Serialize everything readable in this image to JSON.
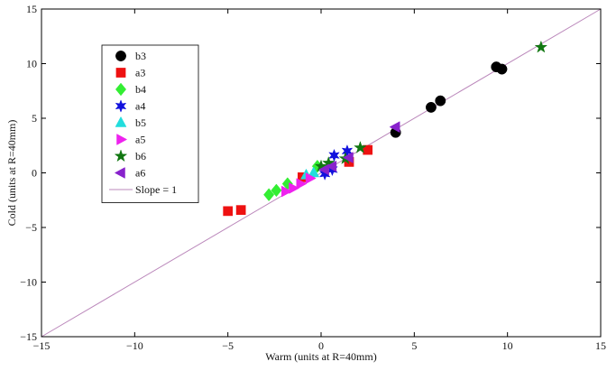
{
  "chart_data": {
    "type": "scatter",
    "title": "",
    "xlabel": "Warm (units at R=40mm)",
    "ylabel": "Cold (units at R=40mm)",
    "xlim": [
      -15,
      15
    ],
    "ylim": [
      -15,
      15
    ],
    "xticks": [
      -15,
      -10,
      -5,
      0,
      5,
      10,
      15
    ],
    "yticks": [
      -15,
      -10,
      -5,
      0,
      5,
      10,
      15
    ],
    "xtick_labels": [
      "−15",
      "−10",
      "−5",
      "0",
      "5",
      "10",
      "15"
    ],
    "ytick_labels": [
      "−15",
      "−10",
      "−5",
      "0",
      "5",
      "10",
      "15"
    ],
    "grid": false,
    "legend_position": "upper-left",
    "series": [
      {
        "name": "b3",
        "color": "#000000",
        "marker": "circle",
        "points": [
          [
            4.0,
            3.7
          ],
          [
            5.9,
            6.0
          ],
          [
            6.4,
            6.6
          ],
          [
            9.4,
            9.7
          ],
          [
            9.7,
            9.5
          ]
        ]
      },
      {
        "name": "a3",
        "color": "#ee1111",
        "marker": "square",
        "points": [
          [
            -5.0,
            -3.5
          ],
          [
            -4.3,
            -3.4
          ],
          [
            -1.0,
            -0.4
          ],
          [
            1.5,
            1.0
          ],
          [
            2.5,
            2.1
          ]
        ]
      },
      {
        "name": "b4",
        "color": "#33ee33",
        "marker": "diamond",
        "points": [
          [
            -2.8,
            -2.0
          ],
          [
            -2.4,
            -1.6
          ],
          [
            -1.8,
            -1.0
          ],
          [
            -0.2,
            0.6
          ]
        ]
      },
      {
        "name": "a4",
        "color": "#1111dd",
        "marker": "hexagram",
        "points": [
          [
            0.2,
            -0.1
          ],
          [
            0.6,
            0.3
          ],
          [
            0.7,
            1.6
          ],
          [
            1.4,
            2.0
          ]
        ]
      },
      {
        "name": "b5",
        "color": "#22dddd",
        "marker": "triangle-up",
        "points": [
          [
            -0.8,
            -0.2
          ],
          [
            -0.4,
            0.0
          ]
        ]
      },
      {
        "name": "a5",
        "color": "#ee22ee",
        "marker": "triangle-right",
        "points": [
          [
            -1.9,
            -1.7
          ],
          [
            -1.5,
            -1.4
          ],
          [
            -1.1,
            -1.0
          ],
          [
            -0.6,
            -0.5
          ]
        ]
      },
      {
        "name": "b6",
        "color": "#117711",
        "marker": "pentagram",
        "points": [
          [
            0.0,
            0.6
          ],
          [
            0.4,
            0.9
          ],
          [
            1.3,
            1.3
          ],
          [
            2.1,
            2.3
          ],
          [
            11.8,
            11.5
          ]
        ]
      },
      {
        "name": "a6",
        "color": "#8822cc",
        "marker": "triangle-left",
        "points": [
          [
            0.2,
            0.3
          ],
          [
            0.6,
            0.6
          ],
          [
            1.5,
            1.4
          ],
          [
            4.0,
            4.2
          ]
        ]
      }
    ],
    "reference_line": {
      "name": "Slope = 1",
      "color": "#bb88bb",
      "from": [
        -15,
        -15
      ],
      "to": [
        15,
        15
      ]
    }
  }
}
